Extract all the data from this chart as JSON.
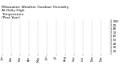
{
  "title": "Milwaukee Weather Outdoor Humidity\nAt Daily High\nTemperature\n(Past Year)",
  "title_fontsize": 3.2,
  "bg_color": "#ffffff",
  "plot_bg_color": "#ffffff",
  "grid_color": "#888888",
  "blue_color": "#0000ee",
  "red_color": "#ee0000",
  "n_points": 365,
  "ylim": [
    10,
    105
  ],
  "yticks": [
    20,
    30,
    40,
    50,
    60,
    70,
    80,
    90,
    100
  ],
  "ylabel_fontsize": 2.8,
  "xlabel_fontsize": 2.5,
  "seed": 42,
  "spike_index": 118,
  "spike_value": 102
}
